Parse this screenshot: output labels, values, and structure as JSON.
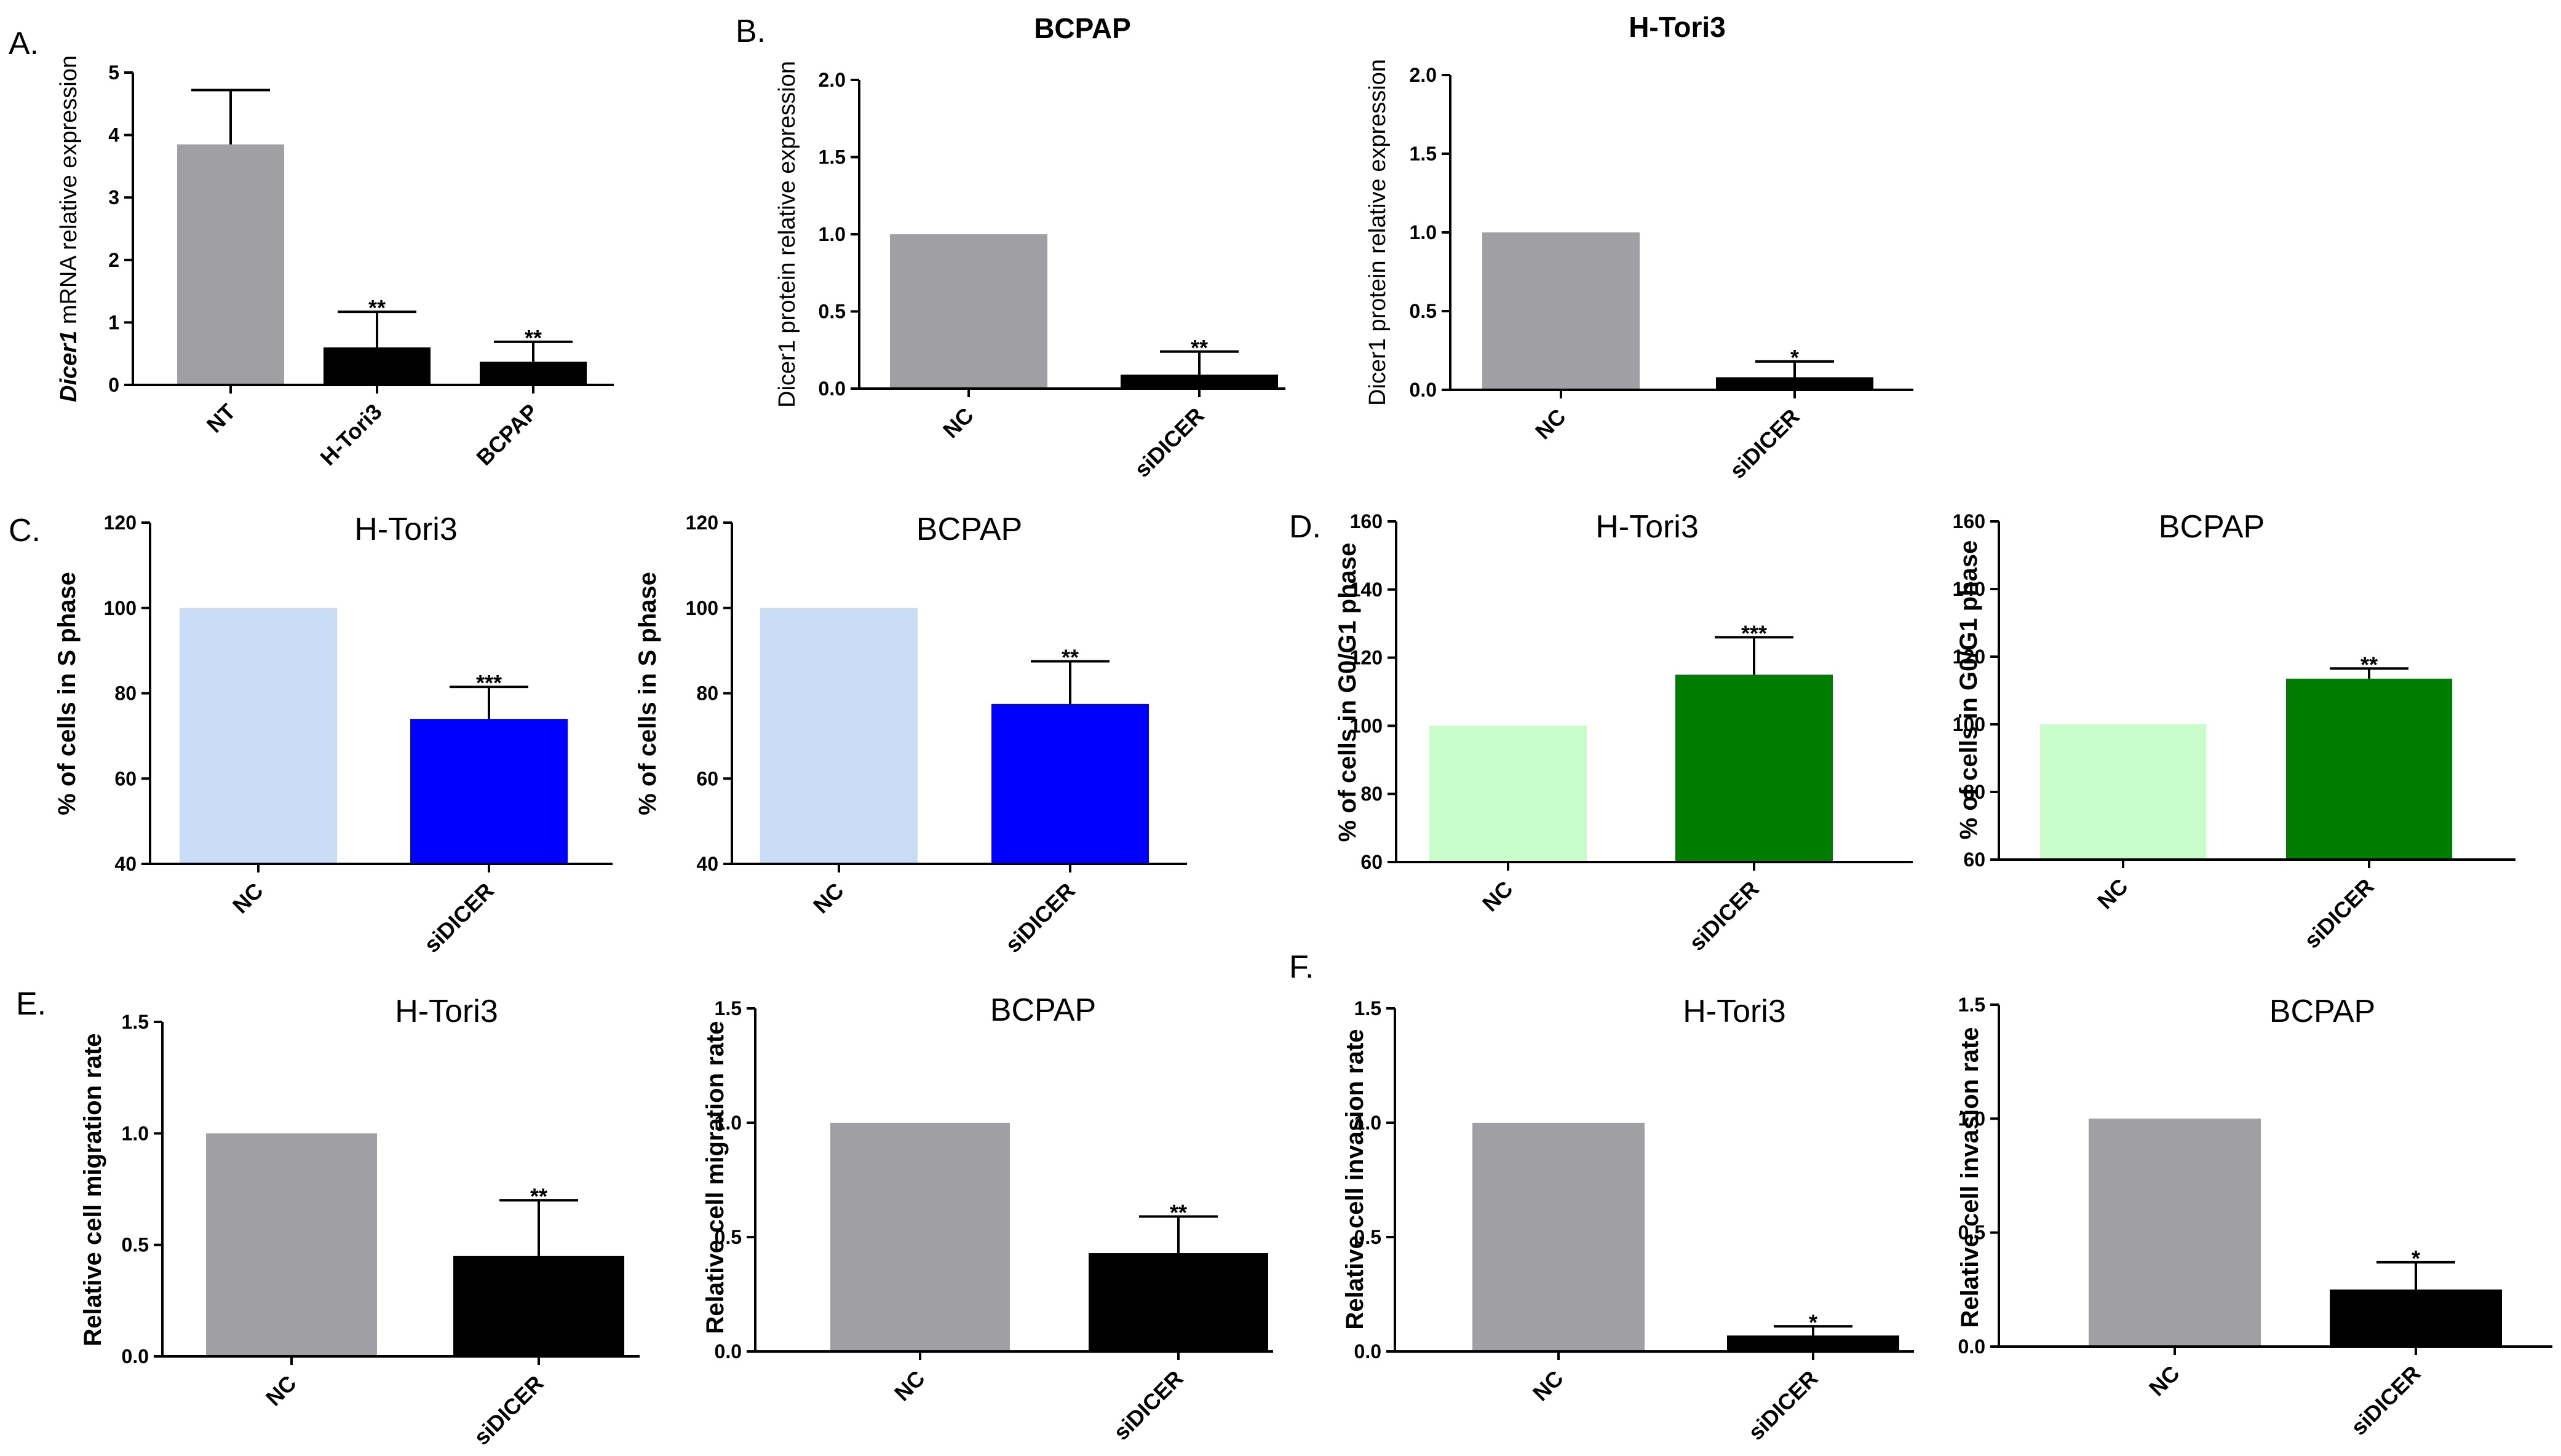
{
  "panel_letters": [
    "A.",
    "B.",
    "C.",
    "D.",
    "E.",
    "F."
  ],
  "chart_data": [
    {
      "id": "A",
      "type": "bar",
      "title": "",
      "xlabel": "",
      "ylabel_italic": "Dicer1",
      "ylabel": " mRNA relative expression",
      "categories": [
        "NT",
        "H-Tori3",
        "BCPAP"
      ],
      "values": [
        3.85,
        0.6,
        0.37
      ],
      "errors": [
        0.87,
        0.57,
        0.32
      ],
      "significance": [
        "",
        "**",
        "**"
      ],
      "colors": [
        "#a09fa4",
        "#000000",
        "#000000"
      ],
      "ylim": [
        0,
        5
      ],
      "yticks": [
        "0",
        "1",
        "2",
        "3",
        "4",
        "5"
      ]
    },
    {
      "id": "B1",
      "type": "bar",
      "title": "BCPAP",
      "xlabel": "",
      "ylabel": "Dicer1 protein relative expression",
      "categories": [
        "NC",
        "siDICER"
      ],
      "values": [
        1.0,
        0.09
      ],
      "errors": [
        0,
        0.15
      ],
      "significance": [
        "",
        "**"
      ],
      "colors": [
        "#a09fa4",
        "#000000"
      ],
      "ylim": [
        0,
        2.0
      ],
      "yticks": [
        "0.0",
        "0.5",
        "1.0",
        "1.5",
        "2.0"
      ]
    },
    {
      "id": "B2",
      "type": "bar",
      "title": "H-Tori3",
      "xlabel": "",
      "ylabel": "Dicer1 protein relative expression",
      "categories": [
        "NC",
        "siDICER"
      ],
      "values": [
        1.0,
        0.08
      ],
      "errors": [
        0,
        0.1
      ],
      "significance": [
        "",
        "*"
      ],
      "colors": [
        "#a09fa4",
        "#000000"
      ],
      "ylim": [
        0,
        2.0
      ],
      "yticks": [
        "0.0",
        "0.5",
        "1.0",
        "1.5",
        "2.0"
      ]
    },
    {
      "id": "C1",
      "type": "bar",
      "title": "H-Tori3",
      "xlabel": "",
      "ylabel": "% of cells in S phase",
      "categories": [
        "NC",
        "siDICER"
      ],
      "values": [
        100,
        74
      ],
      "errors": [
        0,
        7.5
      ],
      "significance": [
        "",
        "***"
      ],
      "colors": [
        "#c9ddf7",
        "#0000ff"
      ],
      "ylim": [
        40,
        120
      ],
      "yticks": [
        "40",
        "60",
        "80",
        "100",
        "120"
      ]
    },
    {
      "id": "C2",
      "type": "bar",
      "title": "BCPAP",
      "xlabel": "",
      "ylabel": "% of cells in S phase",
      "categories": [
        "NC",
        "siDICER"
      ],
      "values": [
        100,
        77.5
      ],
      "errors": [
        0,
        10
      ],
      "significance": [
        "",
        "**"
      ],
      "colors": [
        "#c9ddf7",
        "#0000ff"
      ],
      "ylim": [
        40,
        120
      ],
      "yticks": [
        "40",
        "60",
        "80",
        "100",
        "120"
      ]
    },
    {
      "id": "D1",
      "type": "bar",
      "title": "H-Tori3",
      "xlabel": "",
      "ylabel": "% of cells in G0/G1 phase",
      "categories": [
        "NC",
        "siDICER"
      ],
      "values": [
        100,
        115
      ],
      "errors": [
        0,
        11
      ],
      "significance": [
        "",
        "***"
      ],
      "colors": [
        "#c8fcc8",
        "#007d00"
      ],
      "ylim": [
        60,
        160
      ],
      "yticks": [
        "60",
        "80",
        "100",
        "120",
        "140",
        "160"
      ]
    },
    {
      "id": "D2",
      "type": "bar",
      "title": "BCPAP",
      "xlabel": "",
      "ylabel": "% of cells in G0/G1 phase",
      "categories": [
        "NC",
        "siDICER"
      ],
      "values": [
        100,
        113.5
      ],
      "errors": [
        0,
        3
      ],
      "significance": [
        "",
        "**"
      ],
      "colors": [
        "#c8fcc8",
        "#007d00"
      ],
      "ylim": [
        60,
        160
      ],
      "yticks": [
        "60",
        "80",
        "100",
        "120",
        "140",
        "160"
      ]
    },
    {
      "id": "E1",
      "type": "bar",
      "title": "H-Tori3",
      "xlabel": "",
      "ylabel": "Relative cell migration rate",
      "categories": [
        "NC",
        "siDICER"
      ],
      "values": [
        1.0,
        0.45
      ],
      "errors": [
        0,
        0.25
      ],
      "significance": [
        "",
        "**"
      ],
      "colors": [
        "#a09fa4",
        "#000000"
      ],
      "ylim": [
        0,
        1.5
      ],
      "yticks": [
        "0.0",
        "0.5",
        "1.0",
        "1.5"
      ]
    },
    {
      "id": "E2",
      "type": "bar",
      "title": "BCPAP",
      "xlabel": "",
      "ylabel": "Relative cell migration rate",
      "categories": [
        "NC",
        "siDICER"
      ],
      "values": [
        1.0,
        0.43
      ],
      "errors": [
        0,
        0.16
      ],
      "significance": [
        "",
        "**"
      ],
      "colors": [
        "#a09fa4",
        "#000000"
      ],
      "ylim": [
        0,
        1.5
      ],
      "yticks": [
        "0.0",
        "0.5",
        "1.0",
        "1.5"
      ]
    },
    {
      "id": "F1",
      "type": "bar",
      "title": "H-Tori3",
      "xlabel": "",
      "ylabel": "Relative cell invasion rate",
      "categories": [
        "NC",
        "siDICER"
      ],
      "values": [
        1.0,
        0.07
      ],
      "errors": [
        0,
        0.04
      ],
      "significance": [
        "",
        "*"
      ],
      "colors": [
        "#a09fa4",
        "#000000"
      ],
      "ylim": [
        0,
        1.5
      ],
      "yticks": [
        "0.0",
        "0.5",
        "1.0",
        "1.5"
      ]
    },
    {
      "id": "F2",
      "type": "bar",
      "title": "BCPAP",
      "xlabel": "",
      "ylabel": "Relative cell invasion rate",
      "categories": [
        "NC",
        "siDICER"
      ],
      "values": [
        1.0,
        0.25
      ],
      "errors": [
        0,
        0.12
      ],
      "significance": [
        "",
        "*"
      ],
      "colors": [
        "#a09fa4",
        "#000000"
      ],
      "ylim": [
        0,
        1.5
      ],
      "yticks": [
        "0.0",
        "0.5",
        "1.0",
        "1.5"
      ]
    }
  ]
}
